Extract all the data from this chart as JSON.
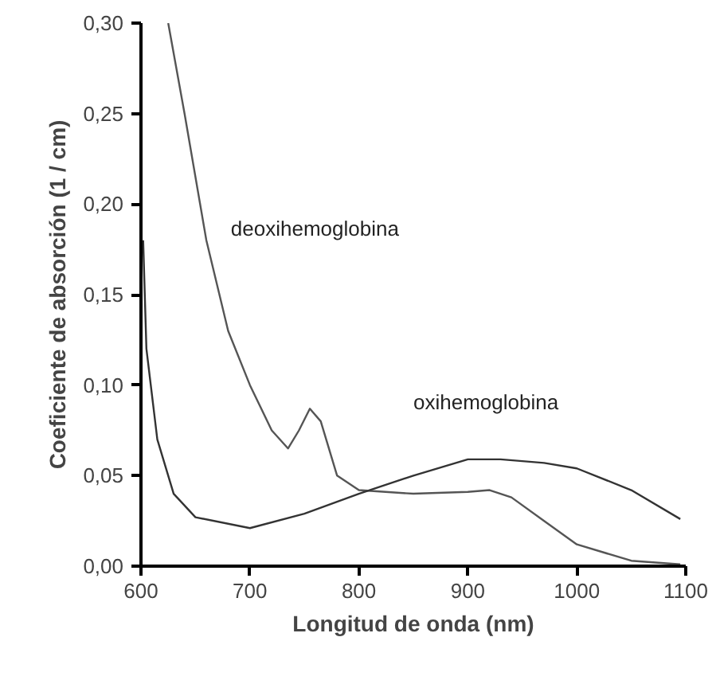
{
  "chart_data": {
    "type": "line",
    "xlabel": "Longitud de onda (nm)",
    "ylabel": "Coeficiente de absorción (1 / cm)",
    "xlim": [
      600,
      1100
    ],
    "ylim": [
      0,
      0.3
    ],
    "xticks": [
      600,
      700,
      800,
      900,
      1000,
      1100
    ],
    "yticks": [
      {
        "value": 0,
        "label": "0,00"
      },
      {
        "value": 0.05,
        "label": "0,05"
      },
      {
        "value": 0.1,
        "label": "0,10"
      },
      {
        "value": 0.15,
        "label": "0,15"
      },
      {
        "value": 0.2,
        "label": "0,20"
      },
      {
        "value": 0.25,
        "label": "0,25"
      },
      {
        "value": 0.3,
        "label": "0,30"
      }
    ],
    "grid": false,
    "line_style": "solid",
    "series": [
      {
        "name": "deoxihemoglobina",
        "color": "#555555",
        "x": [
          625,
          640,
          660,
          680,
          700,
          720,
          735,
          745,
          755,
          765,
          780,
          800,
          850,
          900,
          920,
          940,
          970,
          1000,
          1050,
          1095
        ],
        "values": [
          0.3,
          0.25,
          0.18,
          0.13,
          0.1,
          0.075,
          0.065,
          0.075,
          0.087,
          0.08,
          0.05,
          0.042,
          0.04,
          0.041,
          0.042,
          0.038,
          0.025,
          0.012,
          0.003,
          0.001
        ]
      },
      {
        "name": "oxihemoglobina",
        "color": "#333333",
        "x": [
          602,
          605,
          615,
          630,
          650,
          700,
          750,
          800,
          850,
          900,
          930,
          970,
          1000,
          1050,
          1095
        ],
        "values": [
          0.18,
          0.12,
          0.07,
          0.04,
          0.027,
          0.021,
          0.029,
          0.04,
          0.05,
          0.059,
          0.059,
          0.057,
          0.054,
          0.042,
          0.026
        ]
      }
    ]
  }
}
